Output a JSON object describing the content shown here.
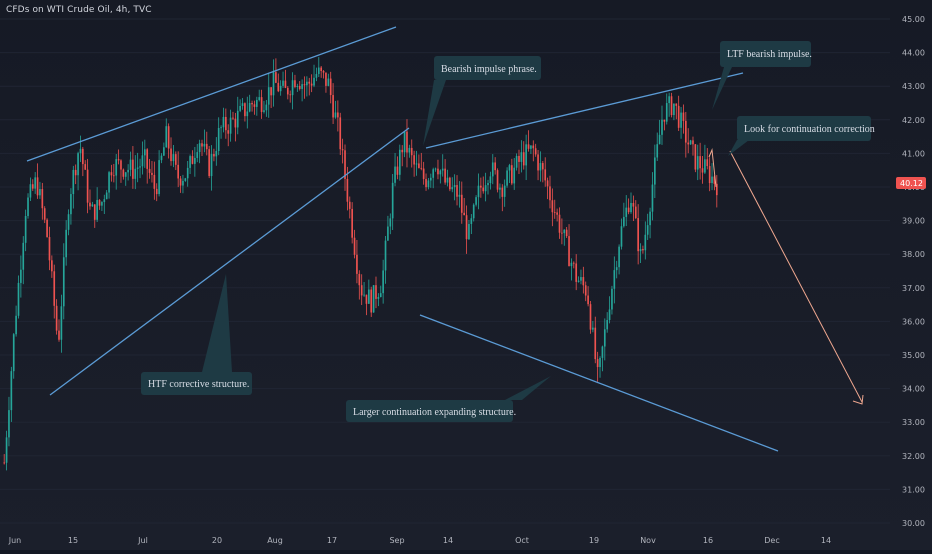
{
  "header": {
    "title": "CFDs on WTI Crude Oil, 4h, TVC"
  },
  "chart_data": {
    "type": "candlestick",
    "y_ticks": [
      "45.00",
      "44.00",
      "43.00",
      "42.00",
      "41.00",
      "40.00",
      "39.00",
      "38.00",
      "37.00",
      "36.00",
      "35.00",
      "34.00",
      "33.00",
      "32.00",
      "31.00",
      "30.00"
    ],
    "y_range": [
      30,
      45
    ],
    "x_ticks": [
      "Jun",
      "15",
      "Jul",
      "20",
      "Aug",
      "17",
      "Sep",
      "14",
      "Oct",
      "19",
      "Nov",
      "16",
      "Dec",
      "14"
    ],
    "last_price": "40.12",
    "price_path": [
      [
        0,
        31.8
      ],
      [
        1,
        36.0
      ],
      [
        2,
        39.4
      ],
      [
        3,
        40.2
      ],
      [
        4,
        38.5
      ],
      [
        5,
        35.3
      ],
      [
        6,
        39.7
      ],
      [
        7,
        41.3
      ],
      [
        8,
        39.2
      ],
      [
        9,
        39.5
      ],
      [
        10,
        40.7
      ],
      [
        11,
        40.6
      ],
      [
        12,
        40.5
      ],
      [
        13,
        40.8
      ],
      [
        14,
        39.9
      ],
      [
        15,
        41.5
      ],
      [
        16,
        40.3
      ],
      [
        17,
        40.4
      ],
      [
        18,
        41.5
      ],
      [
        19,
        40.6
      ],
      [
        20,
        41.7
      ],
      [
        21,
        41.9
      ],
      [
        22,
        42.2
      ],
      [
        23,
        42.5
      ],
      [
        24,
        42.6
      ],
      [
        25,
        43.1
      ],
      [
        26,
        42.8
      ],
      [
        27,
        43.3
      ],
      [
        28,
        43.0
      ],
      [
        29,
        43.4
      ],
      [
        30,
        43.1
      ],
      [
        31,
        41.6
      ],
      [
        32,
        39.3
      ],
      [
        33,
        37.0
      ],
      [
        34,
        36.6
      ],
      [
        35,
        37.2
      ],
      [
        36,
        40.0
      ],
      [
        37,
        41.4
      ],
      [
        38,
        40.6
      ],
      [
        39,
        40.2
      ],
      [
        40,
        40.8
      ],
      [
        41,
        40.0
      ],
      [
        42,
        39.8
      ],
      [
        43,
        38.5
      ],
      [
        44,
        39.9
      ],
      [
        45,
        40.6
      ],
      [
        46,
        40.0
      ],
      [
        47,
        40.4
      ],
      [
        48,
        40.9
      ],
      [
        49,
        41.1
      ],
      [
        50,
        40.3
      ],
      [
        51,
        39.3
      ],
      [
        52,
        38.3
      ],
      [
        53,
        37.3
      ],
      [
        54,
        36.9
      ],
      [
        55,
        34.2
      ],
      [
        56,
        36.5
      ],
      [
        57,
        38.5
      ],
      [
        58,
        39.8
      ],
      [
        59,
        37.8
      ],
      [
        60,
        40.0
      ],
      [
        61,
        42.2
      ],
      [
        62,
        42.5
      ],
      [
        63,
        41.6
      ],
      [
        64,
        40.8
      ],
      [
        65,
        40.5
      ],
      [
        66,
        40.1
      ]
    ],
    "annotations": [
      "HTF corrective structure.",
      "Bearish impulse phrase.",
      "Larger continuation expanding structure.",
      "LTF bearish impulse.",
      "Look for continuation correction"
    ],
    "colors": {
      "up": "#26a69a",
      "down": "#ef5350",
      "trendline": "#5b9bd5",
      "callout": "#1e3a44",
      "projection": "#f0a890",
      "price_tag": "#ef5350"
    }
  }
}
